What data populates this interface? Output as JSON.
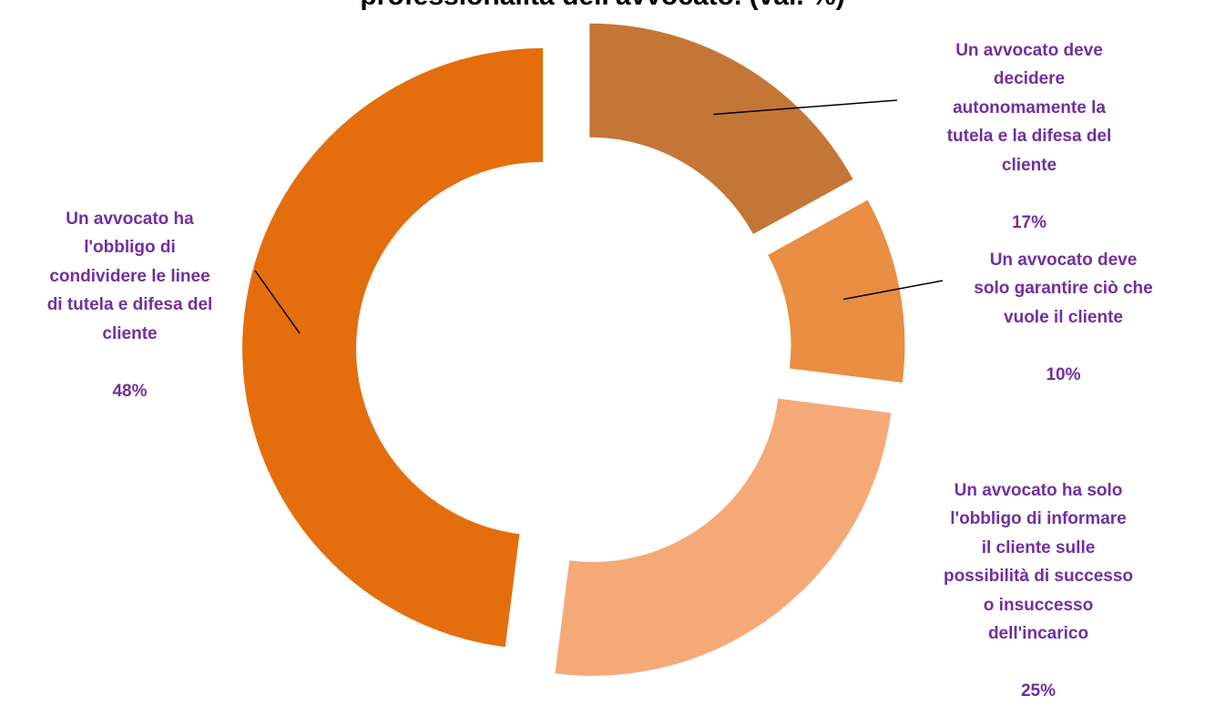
{
  "chart_data": {
    "type": "donut",
    "title": "professionalità dell'avvocato. (val. %)",
    "slices": [
      {
        "label": "Un avvocato deve\ndecidere\nautonomamente la\ntutela e la difesa del\ncliente",
        "value_label": "17%",
        "value": 17,
        "color": "#c47637"
      },
      {
        "label": "Un avvocato deve\nsolo garantire ciò che\nvuole il cliente",
        "value_label": "10%",
        "value": 10,
        "color": "#e98e42"
      },
      {
        "label": "Un avvocato ha solo\nl'obbligo di informare\nil cliente sulle\npossibilità di successo\no insuccesso\ndell'incarico",
        "value_label": "25%",
        "value": 25,
        "color": "#f5a977"
      },
      {
        "label": "Un avvocato ha\nl'obbligo di\ncondividere le linee\ndi tutela e difesa del\ncliente",
        "value_label": "48%",
        "value": 48,
        "color": "#e46e0d"
      }
    ],
    "legend": "none",
    "label_color": "#7030a0"
  }
}
